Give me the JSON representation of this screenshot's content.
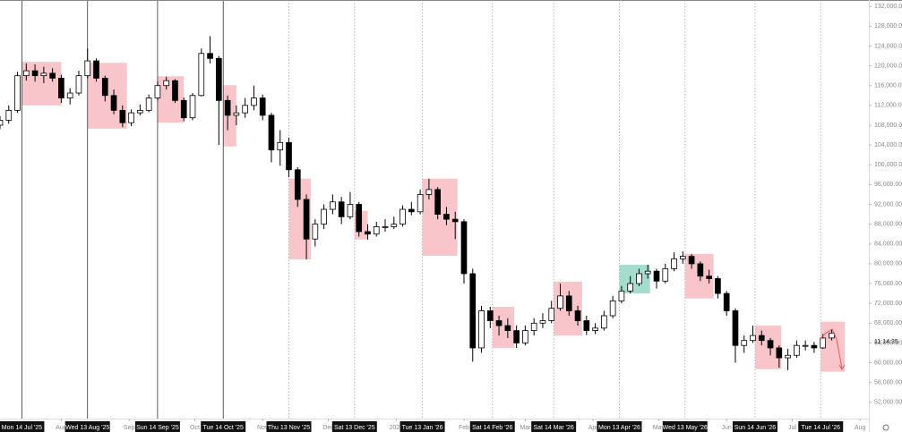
{
  "chart_data": {
    "type": "candlestick",
    "xlim": [
      "2025-07-04",
      "2026-08-05"
    ],
    "ylim": [
      49800,
      133300
    ],
    "yticks": [
      {
        "value": 52000,
        "label": "52,000.00"
      },
      {
        "value": 56000,
        "label": "56,000.00"
      },
      {
        "value": 60000,
        "label": "60,000.00"
      },
      {
        "value": 64000,
        "label": "64,000.00"
      },
      {
        "value": 68000,
        "label": "68,000.00"
      },
      {
        "value": 72000,
        "label": "72,000.00"
      },
      {
        "value": 76000,
        "label": "76,000.00"
      },
      {
        "value": 80000,
        "label": "80,000.00"
      },
      {
        "value": 84000,
        "label": "84,000.00"
      },
      {
        "value": 88000,
        "label": "88,000.00"
      },
      {
        "value": 92000,
        "label": "92,000.00"
      },
      {
        "value": 96000,
        "label": "96,000.00"
      },
      {
        "value": 100000,
        "label": "100,000.00"
      },
      {
        "value": 104000,
        "label": "104,000.00"
      },
      {
        "value": 108000,
        "label": "108,000.00"
      },
      {
        "value": 112000,
        "label": "112,000.00"
      },
      {
        "value": 116000,
        "label": "116,000.00"
      },
      {
        "value": 120000,
        "label": "120,000.00"
      },
      {
        "value": 124000,
        "label": "124,000.00"
      },
      {
        "value": 128000,
        "label": "128,000.00"
      },
      {
        "value": 132000,
        "label": "132,000.00"
      }
    ],
    "xticks": [
      {
        "value": "2025-08-01",
        "label": "Aug"
      },
      {
        "value": "2025-09-01",
        "label": "Sep"
      },
      {
        "value": "2025-10-01",
        "label": "Oct"
      },
      {
        "value": "2025-11-01",
        "label": "Nov"
      },
      {
        "value": "2025-12-01",
        "label": "Dec"
      },
      {
        "value": "2026-01-01",
        "label": "2026"
      },
      {
        "value": "2026-02-01",
        "label": "Feb"
      },
      {
        "value": "2026-03-01",
        "label": "Mar"
      },
      {
        "value": "2026-04-01",
        "label": "Apr"
      },
      {
        "value": "2026-05-01",
        "label": "May"
      },
      {
        "value": "2026-06-01",
        "label": "Jun"
      },
      {
        "value": "2026-07-01",
        "label": "Jul"
      },
      {
        "value": "2026-08-01",
        "label": "Aug"
      }
    ],
    "markers": [
      {
        "value": "2025-07-14",
        "label": "Mon 14 Jul '25",
        "line": "solid"
      },
      {
        "value": "2025-08-13",
        "label": "Wed 13 Aug '25",
        "line": "solid"
      },
      {
        "value": "2025-09-14",
        "label": "Sun 14 Sep '25",
        "line": "solid"
      },
      {
        "value": "2025-10-14",
        "label": "Tue 14 Oct '25",
        "line": "solid"
      },
      {
        "value": "2025-11-13",
        "label": "Thu 13 Nov '25",
        "line": "dotted"
      },
      {
        "value": "2025-12-13",
        "label": "Sat 13 Dec '25",
        "line": "dotted"
      },
      {
        "value": "2026-01-13",
        "label": "Tue 13 Jan '26",
        "line": "dotted"
      },
      {
        "value": "2026-02-14",
        "label": "Sat 14 Feb '26",
        "line": "dotted"
      },
      {
        "value": "2026-03-14",
        "label": "Sat 14 Mar '26",
        "line": "dotted"
      },
      {
        "value": "2026-04-13",
        "label": "Mon 13 Apr '26",
        "line": "dotted"
      },
      {
        "value": "2026-05-13",
        "label": "Wed 13 May '26",
        "line": "dotted"
      },
      {
        "value": "2026-06-14",
        "label": "Sun 14 Jun '26",
        "line": "dotted"
      },
      {
        "value": "2026-07-14",
        "label": "Tue 14 Jul '26",
        "line": "dotted"
      }
    ],
    "zones": [
      {
        "start": "2025-07-14",
        "end": "2025-08-01",
        "low": 112000,
        "high": 120800,
        "color": "#f7c0c4"
      },
      {
        "start": "2025-08-13",
        "end": "2025-08-31",
        "low": 107300,
        "high": 120600,
        "color": "#f7c0c4"
      },
      {
        "start": "2025-09-14",
        "end": "2025-09-26",
        "low": 108500,
        "high": 117900,
        "color": "#f7c0c4"
      },
      {
        "start": "2025-10-14",
        "end": "2025-10-20",
        "low": 103700,
        "high": 116100,
        "color": "#f7c0c4"
      },
      {
        "start": "2025-11-13",
        "end": "2025-11-23",
        "low": 80900,
        "high": 97200,
        "color": "#f7c0c4"
      },
      {
        "start": "2025-12-13",
        "end": "2025-12-19",
        "low": 84900,
        "high": 90700,
        "color": "#f7c0c4"
      },
      {
        "start": "2026-01-13",
        "end": "2026-01-29",
        "low": 81600,
        "high": 97200,
        "color": "#f7c0c4"
      },
      {
        "start": "2026-02-14",
        "end": "2026-02-24",
        "low": 63000,
        "high": 71300,
        "color": "#f7c0c4"
      },
      {
        "start": "2026-03-14",
        "end": "2026-03-27",
        "low": 65500,
        "high": 76400,
        "color": "#f7c0c4"
      },
      {
        "start": "2026-04-13",
        "end": "2026-04-27",
        "low": 74000,
        "high": 79800,
        "color": "#9ad9c8"
      },
      {
        "start": "2026-05-13",
        "end": "2026-05-26",
        "low": 73000,
        "high": 82000,
        "color": "#f7c0c4"
      },
      {
        "start": "2026-06-14",
        "end": "2026-06-26",
        "low": 58700,
        "high": 67500,
        "color": "#f7c0c4"
      },
      {
        "start": "2026-07-14",
        "end": "2026-07-25",
        "low": 58200,
        "high": 68300,
        "color": "#f7c0c4"
      }
    ],
    "up_color": "#ffffff",
    "down_color": "#000000",
    "countdown": "11:14:35",
    "x": [
      "2025-07-04",
      "2025-07-08",
      "2025-07-12",
      "2025-07-16",
      "2025-07-20",
      "2025-07-24",
      "2025-07-28",
      "2025-08-01",
      "2025-08-05",
      "2025-08-09",
      "2025-08-13",
      "2025-08-17",
      "2025-08-21",
      "2025-08-25",
      "2025-08-29",
      "2025-09-02",
      "2025-09-06",
      "2025-09-10",
      "2025-09-14",
      "2025-09-18",
      "2025-09-22",
      "2025-09-26",
      "2025-09-30",
      "2025-10-04",
      "2025-10-08",
      "2025-10-12",
      "2025-10-16",
      "2025-10-20",
      "2025-10-24",
      "2025-10-28",
      "2025-11-01",
      "2025-11-05",
      "2025-11-09",
      "2025-11-13",
      "2025-11-17",
      "2025-11-21",
      "2025-11-25",
      "2025-11-29",
      "2025-12-03",
      "2025-12-07",
      "2025-12-11",
      "2025-12-15",
      "2025-12-19",
      "2025-12-23",
      "2025-12-27",
      "2025-12-31",
      "2026-01-04",
      "2026-01-08",
      "2026-01-12",
      "2026-01-16",
      "2026-01-20",
      "2026-01-24",
      "2026-01-28",
      "2026-02-01",
      "2026-02-05",
      "2026-02-09",
      "2026-02-13",
      "2026-02-17",
      "2026-02-21",
      "2026-02-25",
      "2026-03-01",
      "2026-03-05",
      "2026-03-09",
      "2026-03-13",
      "2026-03-17",
      "2026-03-21",
      "2026-03-25",
      "2026-03-29",
      "2026-04-02",
      "2026-04-06",
      "2026-04-10",
      "2026-04-14",
      "2026-04-18",
      "2026-04-22",
      "2026-04-26",
      "2026-04-30",
      "2026-05-04",
      "2026-05-08",
      "2026-05-12",
      "2026-05-16",
      "2026-05-20",
      "2026-05-24",
      "2026-05-28",
      "2026-06-01",
      "2026-06-05",
      "2026-06-09",
      "2026-06-13",
      "2026-06-17",
      "2026-06-21",
      "2026-06-25",
      "2026-06-29",
      "2026-07-03",
      "2026-07-07",
      "2026-07-11",
      "2026-07-15",
      "2026-07-19"
    ],
    "ohlc": [
      [
        108000,
        109800,
        107200,
        109000
      ],
      [
        109000,
        112000,
        108300,
        111000
      ],
      [
        111000,
        118800,
        110500,
        118000
      ],
      [
        118000,
        120500,
        117000,
        119000
      ],
      [
        119000,
        120300,
        116800,
        118000
      ],
      [
        118000,
        119800,
        116500,
        118500
      ],
      [
        118500,
        119500,
        116800,
        117500
      ],
      [
        117500,
        118200,
        112500,
        113500
      ],
      [
        113500,
        115500,
        112200,
        114500
      ],
      [
        114500,
        119000,
        114000,
        118000
      ],
      [
        118000,
        123500,
        117500,
        121000
      ],
      [
        121000,
        121500,
        116800,
        117500
      ],
      [
        117500,
        118000,
        112800,
        114000
      ],
      [
        114000,
        115200,
        110200,
        111000
      ],
      [
        111000,
        112000,
        107600,
        108500
      ],
      [
        108500,
        111200,
        107800,
        110500
      ],
      [
        110500,
        112200,
        110000,
        111000
      ],
      [
        111000,
        114200,
        110600,
        113500
      ],
      [
        113500,
        116800,
        113000,
        116000
      ],
      [
        116000,
        117800,
        115200,
        117000
      ],
      [
        117000,
        117300,
        112500,
        113000
      ],
      [
        113000,
        113600,
        108800,
        109500
      ],
      [
        109500,
        114500,
        109000,
        114000
      ],
      [
        114000,
        123500,
        113800,
        122500
      ],
      [
        122500,
        126000,
        120500,
        121500
      ],
      [
        121500,
        122000,
        104000,
        113000
      ],
      [
        113000,
        114000,
        107000,
        110000
      ],
      [
        110000,
        112000,
        108000,
        110500
      ],
      [
        110500,
        113500,
        109500,
        112000
      ],
      [
        112000,
        116000,
        111000,
        113500
      ],
      [
        113500,
        114200,
        109000,
        110000
      ],
      [
        110000,
        110500,
        100500,
        103000
      ],
      [
        103000,
        107000,
        99800,
        104500
      ],
      [
        104500,
        105500,
        97500,
        99000
      ],
      [
        99000,
        99500,
        91500,
        93000
      ],
      [
        93000,
        94000,
        80900,
        85000
      ],
      [
        85000,
        89000,
        83500,
        88000
      ],
      [
        88000,
        92000,
        87000,
        91000
      ],
      [
        91000,
        94000,
        90000,
        92500
      ],
      [
        92500,
        93500,
        88000,
        89500
      ],
      [
        89500,
        94500,
        89000,
        92000
      ],
      [
        92000,
        92500,
        85500,
        86500
      ],
      [
        86500,
        88000,
        84900,
        86000
      ],
      [
        86000,
        88500,
        85500,
        87500
      ],
      [
        87500,
        89000,
        86500,
        87500
      ],
      [
        87500,
        89500,
        87000,
        88000
      ],
      [
        88000,
        91800,
        87500,
        91000
      ],
      [
        91000,
        92500,
        89800,
        90500
      ],
      [
        90500,
        95000,
        90000,
        94000
      ],
      [
        94000,
        97200,
        93000,
        95000
      ],
      [
        95000,
        95500,
        89000,
        90000
      ],
      [
        90000,
        91500,
        87800,
        89000
      ],
      [
        89000,
        90500,
        85000,
        88500
      ],
      [
        88500,
        89000,
        76000,
        78000
      ],
      [
        78000,
        79000,
        60200,
        63000
      ],
      [
        63000,
        71500,
        62000,
        70500
      ],
      [
        70500,
        71300,
        67000,
        68500
      ],
      [
        68500,
        69500,
        65500,
        67500
      ],
      [
        67500,
        69000,
        65000,
        66500
      ],
      [
        66500,
        67500,
        63000,
        64000
      ],
      [
        64000,
        67500,
        63500,
        66500
      ],
      [
        66500,
        69000,
        65500,
        68000
      ],
      [
        68000,
        70000,
        67000,
        68500
      ],
      [
        68500,
        72500,
        68000,
        71000
      ],
      [
        71000,
        76000,
        70500,
        73500
      ],
      [
        73500,
        74500,
        69500,
        70500
      ],
      [
        70500,
        71500,
        67500,
        68500
      ],
      [
        68500,
        69500,
        65600,
        66500
      ],
      [
        66500,
        68000,
        65800,
        67000
      ],
      [
        67000,
        70500,
        66500,
        69500
      ],
      [
        69500,
        73500,
        69000,
        72500
      ],
      [
        72500,
        75500,
        72000,
        74500
      ],
      [
        74500,
        77500,
        74000,
        76000
      ],
      [
        76000,
        79000,
        75500,
        78000
      ],
      [
        78000,
        79800,
        77000,
        78500
      ],
      [
        78500,
        79000,
        75000,
        76500
      ],
      [
        76500,
        80000,
        76000,
        79000
      ],
      [
        79000,
        82300,
        78500,
        81000
      ],
      [
        81000,
        82500,
        80000,
        81500
      ],
      [
        81500,
        82000,
        79000,
        80000
      ],
      [
        80000,
        80500,
        76500,
        77500
      ],
      [
        77500,
        78800,
        76000,
        77000
      ],
      [
        77000,
        77500,
        73000,
        74000
      ],
      [
        74000,
        74500,
        69500,
        70500
      ],
      [
        70500,
        71000,
        60000,
        63500
      ],
      [
        63500,
        65500,
        62000,
        64500
      ],
      [
        64500,
        67500,
        64000,
        65500
      ],
      [
        65500,
        66500,
        63500,
        64500
      ],
      [
        64500,
        65000,
        61500,
        63000
      ],
      [
        63000,
        63500,
        59000,
        61000
      ],
      [
        61000,
        62800,
        58500,
        61500
      ],
      [
        61500,
        64500,
        61000,
        63500
      ],
      [
        63500,
        64500,
        62500,
        63500
      ],
      [
        63500,
        64200,
        62000,
        63000
      ],
      [
        63000,
        65800,
        62800,
        65000
      ],
      [
        65000,
        66800,
        64500,
        66000
      ]
    ]
  }
}
